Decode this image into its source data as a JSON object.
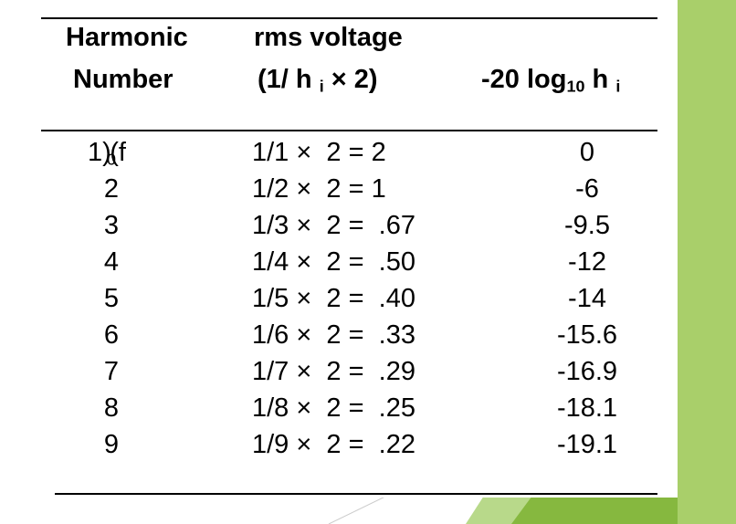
{
  "header": {
    "col1_line1": "Harmonic",
    "col1_line2": "Number",
    "col2_line1": "rms voltage",
    "col2_line2": "(1/ h",
    "col2_line2_sub": "i",
    "col2_line2_end": "× 2)",
    "col3_prefix": "-20 log",
    "col3_sub": "10",
    "col3_mid": " h",
    "col3_sub2": "i"
  },
  "rows": [
    {
      "harmonic": "1 (f",
      "harmonic_sub": "0",
      "harmonic_end": ")",
      "rms": "1/1 ×  2 = 2",
      "db": "0"
    },
    {
      "harmonic": "2",
      "harmonic_sub": "",
      "harmonic_end": "",
      "rms": "1/2 ×  2 = 1",
      "db": "-6"
    },
    {
      "harmonic": "3",
      "harmonic_sub": "",
      "harmonic_end": "",
      "rms": "1/3 ×  2 =  .67",
      "db": "-9.5"
    },
    {
      "harmonic": "4",
      "harmonic_sub": "",
      "harmonic_end": "",
      "rms": "1/4 ×  2 =  .50",
      "db": "-12"
    },
    {
      "harmonic": "5",
      "harmonic_sub": "",
      "harmonic_end": "",
      "rms": "1/5 ×  2 =  .40",
      "db": "-14"
    },
    {
      "harmonic": "6",
      "harmonic_sub": "",
      "harmonic_end": "",
      "rms": "1/6 ×  2 =  .33",
      "db": "-15.6"
    },
    {
      "harmonic": "7",
      "harmonic_sub": "",
      "harmonic_end": "",
      "rms": "1/7 ×  2 =  .29",
      "db": "-16.9"
    },
    {
      "harmonic": "8",
      "harmonic_sub": "",
      "harmonic_end": "",
      "rms": "1/8 ×  2 =  .25",
      "db": "-18.1"
    },
    {
      "harmonic": "9",
      "harmonic_sub": "",
      "harmonic_end": "",
      "rms": "1/9 ×  2 =  .22",
      "db": "-19.1"
    }
  ],
  "colors": {
    "text": "#000000",
    "accent_light": "#a9cf6a",
    "accent_dark": "#7fb43a"
  }
}
